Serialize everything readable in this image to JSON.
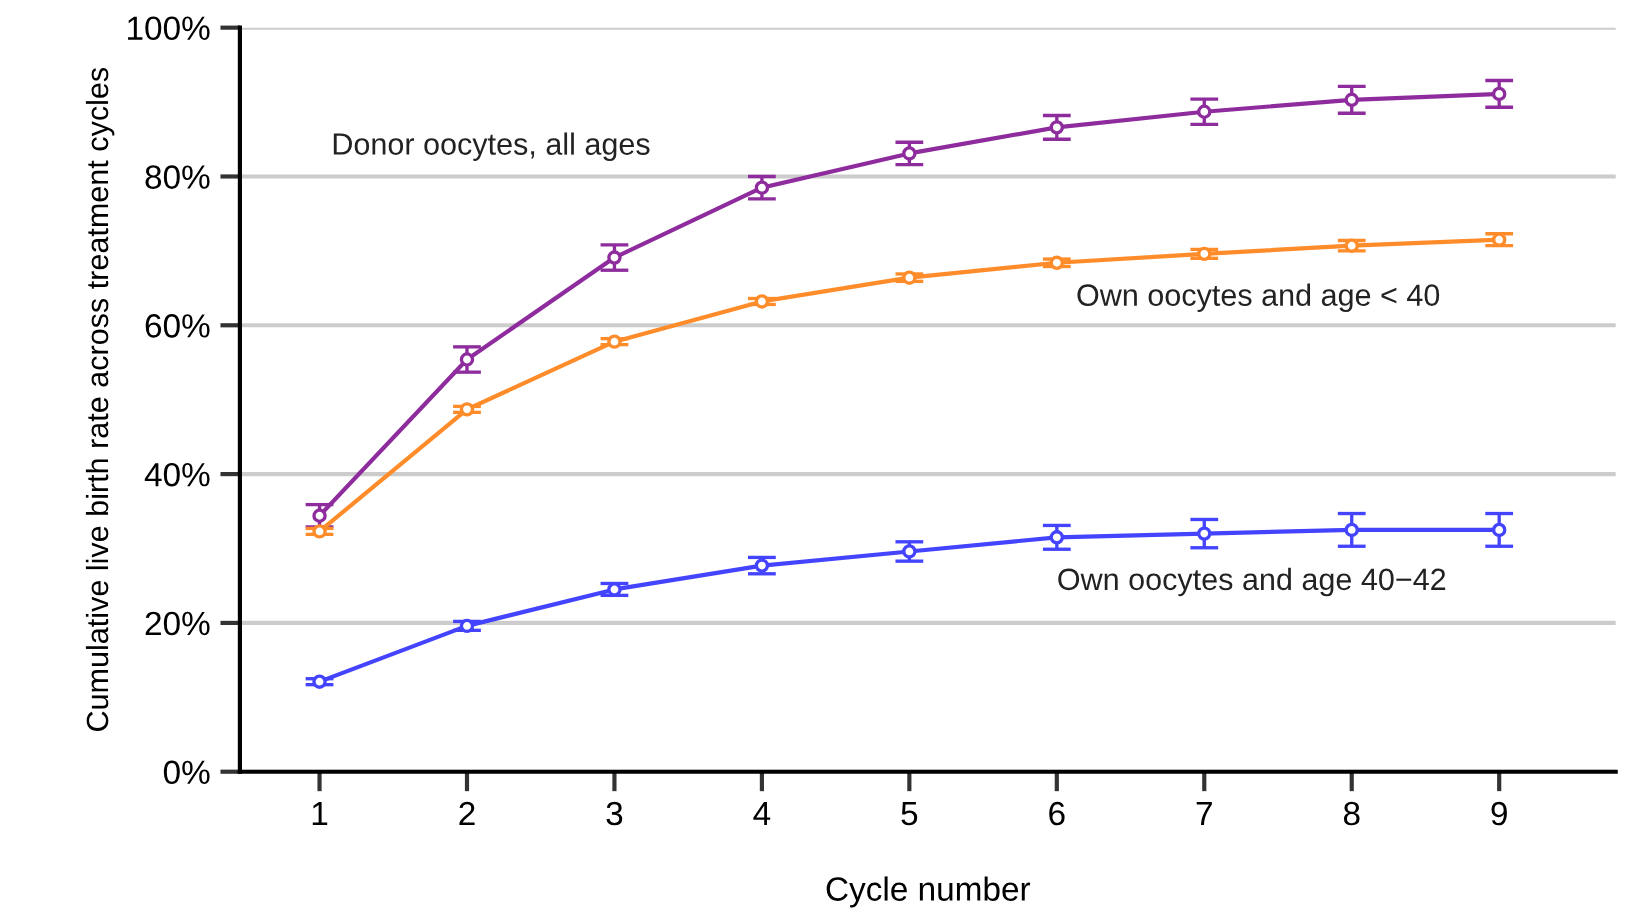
{
  "chart_data": {
    "type": "line",
    "xlabel": "Cycle number",
    "ylabel": "Cumulative live birth rate across treatment cycles",
    "x": [
      1,
      2,
      3,
      4,
      5,
      6,
      7,
      8,
      9
    ],
    "xlim": [
      0.46,
      9.79
    ],
    "xticks": [
      1,
      2,
      3,
      4,
      5,
      6,
      7,
      8,
      9
    ],
    "ylim": [
      0,
      100
    ],
    "yticks": [
      {
        "value": 0,
        "label": "0%"
      },
      {
        "value": 20,
        "label": "20%"
      },
      {
        "value": 40,
        "label": "40%"
      },
      {
        "value": 60,
        "label": "60%"
      },
      {
        "value": 80,
        "label": "80%"
      },
      {
        "value": 100,
        "label": "100%"
      }
    ],
    "grid": "y",
    "marker": "circle",
    "line_style": "solid",
    "series": [
      {
        "name": "Donor oocytes, all ages",
        "color": "#8e2c9e",
        "values": [
          34.4,
          55.4,
          69.1,
          78.5,
          83.1,
          86.6,
          88.7,
          90.3,
          91.1
        ],
        "errors": [
          1.5,
          1.7,
          1.7,
          1.5,
          1.5,
          1.6,
          1.7,
          1.8,
          1.8
        ]
      },
      {
        "name": "Own oocytes and age < 40",
        "color": "#ff8c2a",
        "values": [
          32.3,
          48.7,
          57.8,
          63.2,
          66.4,
          68.4,
          69.6,
          70.7,
          71.5
        ],
        "errors": [
          0.4,
          0.4,
          0.4,
          0.4,
          0.5,
          0.5,
          0.6,
          0.7,
          0.8
        ]
      },
      {
        "name": "Own oocytes and age 40−42",
        "color": "#4444ff",
        "values": [
          12.1,
          19.6,
          24.5,
          27.7,
          29.6,
          31.5,
          32.0,
          32.5,
          32.5
        ],
        "errors": [
          0.4,
          0.6,
          0.8,
          1.1,
          1.3,
          1.6,
          1.9,
          2.2,
          2.2
        ]
      }
    ]
  }
}
